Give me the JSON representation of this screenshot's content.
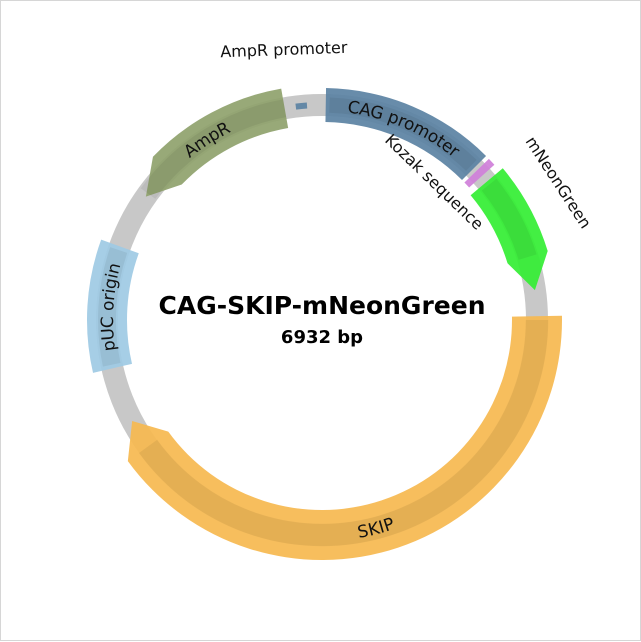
{
  "plasmid": {
    "name": "CAG-SKIP-mNeonGreen",
    "size_label": "6932 bp",
    "backbone_color": "#c8c8c8"
  },
  "features": [
    {
      "id": "cag-promoter",
      "label": "CAG promoter",
      "color": "#5b82a3",
      "start_deg": 1,
      "end_deg": 45,
      "directional": false
    },
    {
      "id": "kozak",
      "label": "Kozak sequence",
      "color": "#cf7fd9",
      "start_deg": 46,
      "end_deg": 48,
      "directional": false
    },
    {
      "id": "mneongreen",
      "label": "mNeonGreen",
      "color": "#33ee33",
      "start_deg": 50,
      "end_deg": 82,
      "directional": true,
      "direction": "cw"
    },
    {
      "id": "skip",
      "label": "SKIP",
      "color": "#f6b94f",
      "start_deg": 89,
      "end_deg": 242,
      "directional": true,
      "direction": "cw"
    },
    {
      "id": "puc-origin",
      "label": "pUC origin",
      "color": "#9ecae4",
      "start_deg": 257,
      "end_deg": 290,
      "directional": false
    },
    {
      "id": "ampr",
      "label": "AmpR",
      "color": "#8fa26d",
      "start_deg": 305,
      "end_deg": 350,
      "directional": true,
      "direction": "ccw"
    },
    {
      "id": "ampr-promoter",
      "label": "AmpR promoter",
      "color": "#5b82a3",
      "start_deg": 353,
      "end_deg": 356,
      "directional": false
    }
  ]
}
